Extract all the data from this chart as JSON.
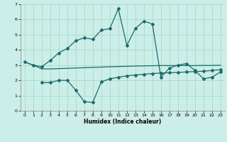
{
  "xlabel": "Humidex (Indice chaleur)",
  "background_color": "#cceee8",
  "grid_color": "#aaddcc",
  "line_color": "#1a6b6b",
  "xlim": [
    -0.5,
    23.5
  ],
  "ylim": [
    0,
    7
  ],
  "yticks": [
    0,
    1,
    2,
    3,
    4,
    5,
    6,
    7
  ],
  "xticks": [
    0,
    1,
    2,
    3,
    4,
    5,
    6,
    7,
    8,
    9,
    10,
    11,
    12,
    13,
    14,
    15,
    16,
    17,
    18,
    19,
    20,
    21,
    22,
    23
  ],
  "series1_x": [
    0,
    1,
    2,
    3,
    4,
    5,
    6,
    7,
    8,
    9,
    10,
    11,
    12,
    13,
    14,
    15,
    16,
    17,
    18,
    19,
    20,
    21,
    22,
    23
  ],
  "series1_y": [
    3.2,
    3.0,
    2.9,
    3.3,
    3.8,
    4.1,
    4.6,
    4.8,
    4.7,
    5.3,
    5.4,
    6.7,
    4.3,
    5.4,
    5.9,
    5.7,
    2.2,
    2.8,
    3.0,
    3.1,
    2.65,
    2.1,
    2.2,
    2.55
  ],
  "series2_x": [
    0,
    1,
    2,
    3,
    4,
    5,
    6,
    7,
    8,
    9,
    10,
    11,
    12,
    13,
    14,
    15,
    16,
    17,
    18,
    19,
    20,
    21,
    22,
    23
  ],
  "series2_y": [
    3.2,
    3.0,
    2.75,
    2.75,
    2.77,
    2.79,
    2.81,
    2.83,
    2.85,
    2.87,
    2.89,
    2.91,
    2.92,
    2.94,
    2.95,
    2.96,
    2.97,
    2.97,
    2.97,
    2.97,
    2.97,
    2.98,
    2.98,
    2.99
  ],
  "series3_x": [
    2,
    3,
    4,
    5,
    6,
    7,
    8,
    9,
    10,
    11,
    12,
    13,
    14,
    15,
    16,
    17,
    18,
    19,
    20,
    21,
    22,
    23
  ],
  "series3_y": [
    1.85,
    1.85,
    2.0,
    2.0,
    1.35,
    0.6,
    0.55,
    1.9,
    2.1,
    2.2,
    2.3,
    2.35,
    2.4,
    2.45,
    2.48,
    2.5,
    2.52,
    2.55,
    2.58,
    2.6,
    2.65,
    2.7
  ]
}
